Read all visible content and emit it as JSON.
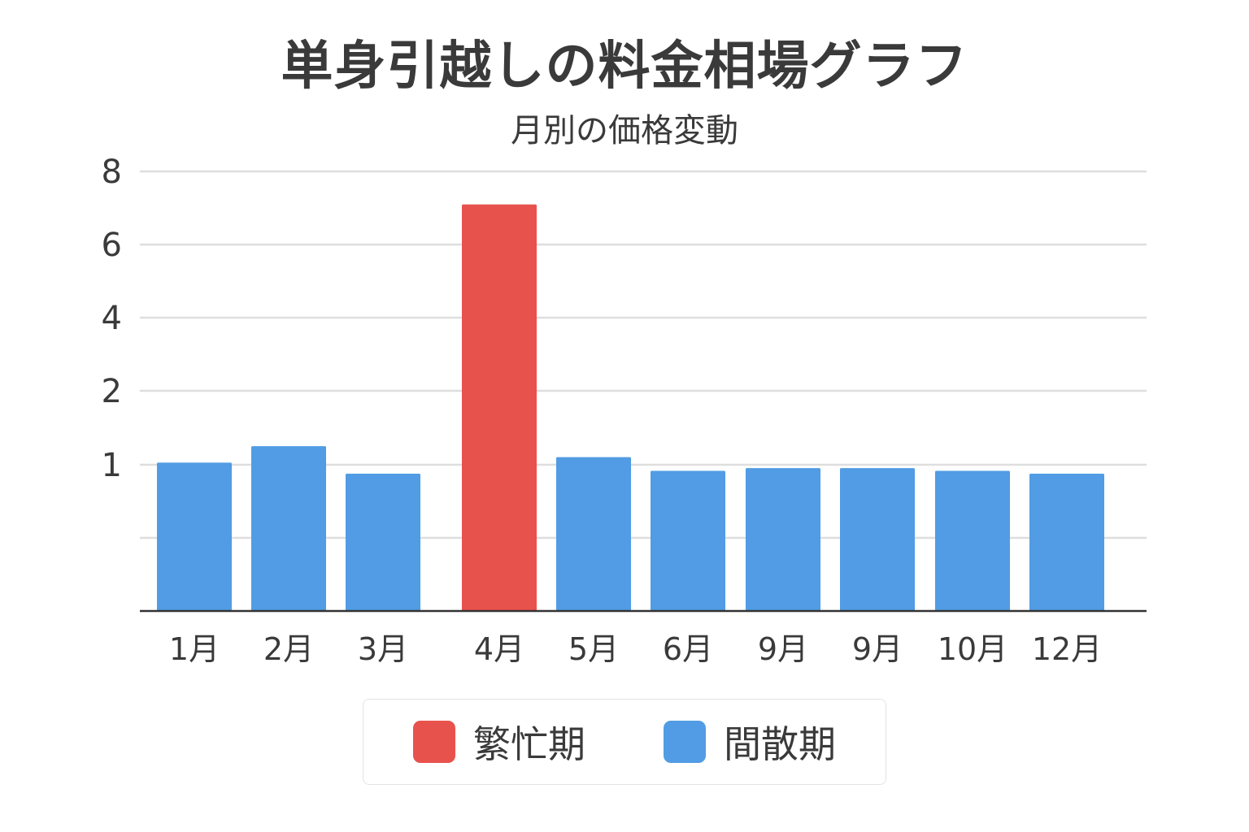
{
  "chart_data": {
    "type": "bar",
    "title": "単身引越しの料金相場グラフ",
    "subtitle": "月別の価格変動",
    "xlabel": "",
    "ylabel": "",
    "y_tick_labels": [
      "8",
      "6",
      "4",
      "2",
      "1",
      ""
    ],
    "categories": [
      "1月",
      "2月",
      "3月",
      "4月",
      "5月",
      "6月",
      "9月",
      "9月",
      "10月",
      "12月"
    ],
    "values": [
      2.7,
      3.0,
      2.5,
      7.4,
      2.8,
      2.55,
      2.6,
      2.6,
      2.55,
      2.5
    ],
    "value_scale_note_tick_positions": [
      8,
      6,
      4,
      2,
      1,
      0
    ],
    "bar_series": [
      "間散期",
      "間散期",
      "間散期",
      "繁忙期",
      "間散期",
      "間散期",
      "間散期",
      "間散期",
      "間散期",
      "間散期"
    ],
    "legend": [
      {
        "label": "繁忙期",
        "color": "#e8524d"
      },
      {
        "label": "間散期",
        "color": "#519ce4"
      }
    ],
    "grid": true,
    "legend_position": "bottom"
  }
}
